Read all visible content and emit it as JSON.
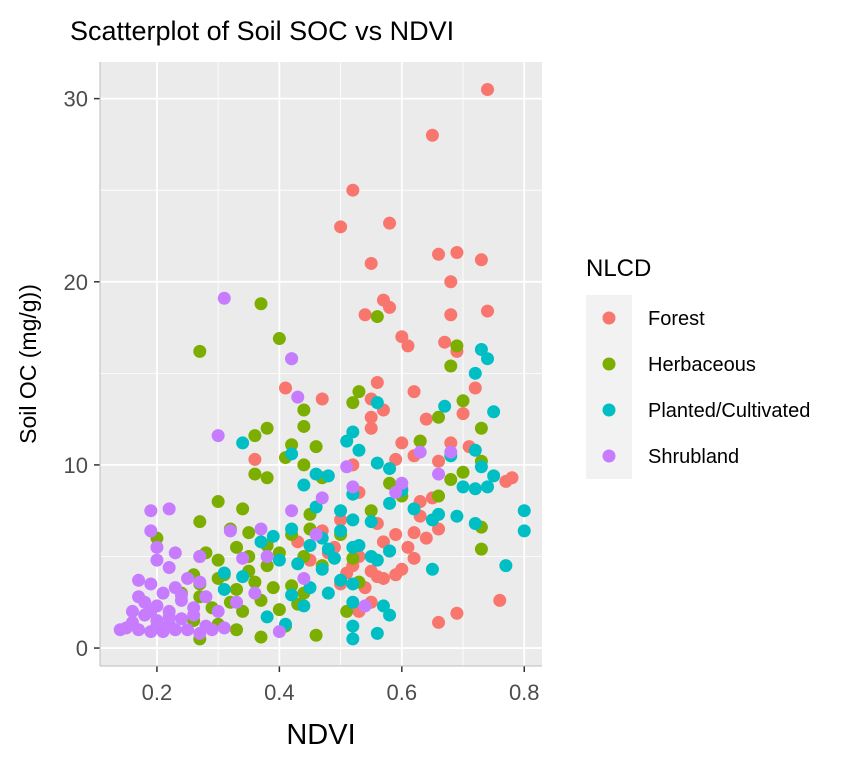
{
  "chart_data": {
    "type": "scatter",
    "title": "Scatterplot of Soil SOC vs NDVI",
    "xlabel": "NDVI",
    "ylabel": "Soil OC (mg/g))",
    "xlim": [
      0.107,
      0.829
    ],
    "ylim": [
      -0.98,
      32.0
    ],
    "xticks": [
      0.2,
      0.4,
      0.6,
      0.8
    ],
    "xtick_labels": [
      "0.2",
      "0.4",
      "0.6",
      "0.8"
    ],
    "yticks": [
      0,
      10,
      20,
      30
    ],
    "ytick_labels": [
      "0",
      "10",
      "20",
      "30"
    ],
    "grid": true,
    "legend": {
      "title": "NLCD",
      "placement": "right"
    },
    "series": [
      {
        "name": "Forest",
        "color": "#F8766D",
        "points": [
          [
            0.74,
            30.5
          ],
          [
            0.65,
            28
          ],
          [
            0.52,
            25
          ],
          [
            0.5,
            23
          ],
          [
            0.58,
            23.2
          ],
          [
            0.55,
            21
          ],
          [
            0.66,
            21.5
          ],
          [
            0.69,
            21.6
          ],
          [
            0.73,
            21.2
          ],
          [
            0.68,
            20
          ],
          [
            0.57,
            19
          ],
          [
            0.58,
            18.6
          ],
          [
            0.68,
            18.2
          ],
          [
            0.74,
            18.4
          ],
          [
            0.54,
            18.2
          ],
          [
            0.6,
            17
          ],
          [
            0.61,
            16.5
          ],
          [
            0.67,
            16.7
          ],
          [
            0.69,
            16.2
          ],
          [
            0.56,
            14.5
          ],
          [
            0.62,
            14
          ],
          [
            0.72,
            14.2
          ],
          [
            0.41,
            14.2
          ],
          [
            0.47,
            13.6
          ],
          [
            0.55,
            13.6
          ],
          [
            0.57,
            13
          ],
          [
            0.55,
            12.6
          ],
          [
            0.64,
            12.5
          ],
          [
            0.7,
            12.8
          ],
          [
            0.55,
            12
          ],
          [
            0.6,
            11.2
          ],
          [
            0.63,
            11.3
          ],
          [
            0.68,
            11.2
          ],
          [
            0.71,
            11
          ],
          [
            0.36,
            10.3
          ],
          [
            0.52,
            10
          ],
          [
            0.59,
            10.3
          ],
          [
            0.62,
            10.5
          ],
          [
            0.66,
            10.2
          ],
          [
            0.78,
            9.3
          ],
          [
            0.77,
            9.1
          ],
          [
            0.53,
            8.5
          ],
          [
            0.6,
            8.7
          ],
          [
            0.65,
            8.2
          ],
          [
            0.63,
            7.2
          ],
          [
            0.5,
            7.0
          ],
          [
            0.47,
            6.4
          ],
          [
            0.56,
            6.8
          ],
          [
            0.62,
            6.3
          ],
          [
            0.64,
            6.0
          ],
          [
            0.66,
            6.5
          ],
          [
            0.43,
            5.8
          ],
          [
            0.48,
            5.2
          ],
          [
            0.53,
            5.0
          ],
          [
            0.58,
            5.3
          ],
          [
            0.61,
            5.5
          ],
          [
            0.62,
            4.9
          ],
          [
            0.52,
            4.5
          ],
          [
            0.55,
            4.2
          ],
          [
            0.57,
            3.8
          ],
          [
            0.59,
            4.0
          ],
          [
            0.5,
            3.5
          ],
          [
            0.54,
            3.3
          ],
          [
            0.56,
            3.9
          ],
          [
            0.6,
            4.3
          ],
          [
            0.45,
            4.8
          ],
          [
            0.53,
            2.0
          ],
          [
            0.55,
            2.5
          ],
          [
            0.69,
            1.9
          ],
          [
            0.66,
            1.4
          ],
          [
            0.76,
            2.6
          ],
          [
            0.49,
            5.5
          ],
          [
            0.51,
            4.1
          ],
          [
            0.57,
            5.8
          ],
          [
            0.63,
            8.0
          ],
          [
            0.59,
            6.2
          ]
        ]
      },
      {
        "name": "Herbaceous",
        "color": "#7CAE00",
        "points": [
          [
            0.37,
            18.8
          ],
          [
            0.27,
            16.2
          ],
          [
            0.4,
            16.9
          ],
          [
            0.56,
            18.1
          ],
          [
            0.69,
            16.5
          ],
          [
            0.68,
            15.4
          ],
          [
            0.53,
            14
          ],
          [
            0.52,
            13.4
          ],
          [
            0.44,
            13
          ],
          [
            0.44,
            12.1
          ],
          [
            0.38,
            12
          ],
          [
            0.36,
            11.6
          ],
          [
            0.42,
            11.1
          ],
          [
            0.46,
            11
          ],
          [
            0.63,
            11.3
          ],
          [
            0.7,
            13.5
          ],
          [
            0.73,
            12
          ],
          [
            0.66,
            12.6
          ],
          [
            0.41,
            10.4
          ],
          [
            0.44,
            10
          ],
          [
            0.36,
            9.5
          ],
          [
            0.38,
            9.3
          ],
          [
            0.47,
            9.3
          ],
          [
            0.58,
            9.0
          ],
          [
            0.68,
            9.2
          ],
          [
            0.7,
            9.6
          ],
          [
            0.73,
            10.2
          ],
          [
            0.3,
            8
          ],
          [
            0.34,
            7.6
          ],
          [
            0.45,
            7.3
          ],
          [
            0.55,
            7.5
          ],
          [
            0.6,
            8.3
          ],
          [
            0.66,
            8.3
          ],
          [
            0.73,
            6.6
          ],
          [
            0.73,
            5.4
          ],
          [
            0.27,
            6.9
          ],
          [
            0.32,
            6.5
          ],
          [
            0.35,
            6.3
          ],
          [
            0.42,
            6.2
          ],
          [
            0.45,
            6.5
          ],
          [
            0.5,
            6.2
          ],
          [
            0.27,
            5.0
          ],
          [
            0.28,
            5.2
          ],
          [
            0.3,
            4.8
          ],
          [
            0.33,
            5.5
          ],
          [
            0.35,
            5.0
          ],
          [
            0.38,
            5.6
          ],
          [
            0.4,
            5.2
          ],
          [
            0.44,
            5.0
          ],
          [
            0.52,
            4.9
          ],
          [
            0.26,
            4.0
          ],
          [
            0.27,
            3.5
          ],
          [
            0.3,
            3.8
          ],
          [
            0.33,
            3.2
          ],
          [
            0.36,
            3.6
          ],
          [
            0.39,
            3.3
          ],
          [
            0.42,
            3.4
          ],
          [
            0.44,
            3.0
          ],
          [
            0.27,
            2.8
          ],
          [
            0.29,
            2.2
          ],
          [
            0.32,
            2.5
          ],
          [
            0.34,
            2.0
          ],
          [
            0.37,
            2.6
          ],
          [
            0.4,
            2.1
          ],
          [
            0.43,
            2.4
          ],
          [
            0.26,
            1.5
          ],
          [
            0.3,
            1.3
          ],
          [
            0.33,
            1.0
          ],
          [
            0.37,
            0.6
          ],
          [
            0.27,
            0.5
          ],
          [
            0.41,
            1.2
          ],
          [
            0.46,
            0.7
          ],
          [
            0.51,
            2.0
          ],
          [
            0.2,
            6
          ],
          [
            0.35,
            4.2
          ],
          [
            0.31,
            4.0
          ],
          [
            0.47,
            4.5
          ],
          [
            0.53,
            3.6
          ],
          [
            0.24,
            3.0
          ],
          [
            0.38,
            4.5
          ]
        ]
      },
      {
        "name": "Planted/Cultivated",
        "color": "#00BFC4",
        "points": [
          [
            0.73,
            16.3
          ],
          [
            0.74,
            15.8
          ],
          [
            0.42,
            15.8
          ],
          [
            0.72,
            15
          ],
          [
            0.56,
            13.4
          ],
          [
            0.67,
            13.2
          ],
          [
            0.75,
            12.9
          ],
          [
            0.52,
            11.8
          ],
          [
            0.51,
            11.3
          ],
          [
            0.34,
            11.2
          ],
          [
            0.42,
            10.6
          ],
          [
            0.53,
            10.8
          ],
          [
            0.56,
            10.1
          ],
          [
            0.68,
            10.5
          ],
          [
            0.72,
            10.8
          ],
          [
            0.46,
            9.5
          ],
          [
            0.48,
            9.4
          ],
          [
            0.58,
            9.8
          ],
          [
            0.73,
            9.9
          ],
          [
            0.44,
            8.9
          ],
          [
            0.52,
            8.4
          ],
          [
            0.6,
            8.6
          ],
          [
            0.7,
            8.8
          ],
          [
            0.72,
            8.7
          ],
          [
            0.75,
            9.4
          ],
          [
            0.74,
            8.8
          ],
          [
            0.8,
            7.5
          ],
          [
            0.8,
            6.4
          ],
          [
            0.77,
            4.5
          ],
          [
            0.58,
            7.9
          ],
          [
            0.66,
            7.3
          ],
          [
            0.69,
            7.2
          ],
          [
            0.72,
            6.8
          ],
          [
            0.65,
            7.0
          ],
          [
            0.46,
            7.7
          ],
          [
            0.5,
            7.5
          ],
          [
            0.52,
            7.0
          ],
          [
            0.55,
            6.9
          ],
          [
            0.39,
            6.1
          ],
          [
            0.42,
            6.5
          ],
          [
            0.47,
            6.0
          ],
          [
            0.5,
            6.4
          ],
          [
            0.53,
            5.6
          ],
          [
            0.45,
            5.6
          ],
          [
            0.48,
            5.4
          ],
          [
            0.52,
            5.5
          ],
          [
            0.55,
            5.0
          ],
          [
            0.58,
            5.3
          ],
          [
            0.65,
            4.3
          ],
          [
            0.37,
            5.8
          ],
          [
            0.4,
            4.8
          ],
          [
            0.43,
            4.6
          ],
          [
            0.47,
            4.3
          ],
          [
            0.5,
            3.7
          ],
          [
            0.52,
            3.5
          ],
          [
            0.31,
            4.1
          ],
          [
            0.34,
            3.9
          ],
          [
            0.42,
            2.9
          ],
          [
            0.45,
            3.3
          ],
          [
            0.48,
            3.0
          ],
          [
            0.44,
            2.3
          ],
          [
            0.52,
            2.5
          ],
          [
            0.57,
            2.3
          ],
          [
            0.38,
            1.7
          ],
          [
            0.41,
            1.3
          ],
          [
            0.52,
            1.2
          ],
          [
            0.52,
            0.5
          ],
          [
            0.56,
            0.8
          ],
          [
            0.58,
            1.8
          ],
          [
            0.31,
            3.2
          ],
          [
            0.62,
            7.6
          ],
          [
            0.56,
            4.8
          ],
          [
            0.49,
            4.9
          ]
        ]
      },
      {
        "name": "Shrubland",
        "color": "#C77CFF",
        "points": [
          [
            0.31,
            19.1
          ],
          [
            0.3,
            11.6
          ],
          [
            0.43,
            13.7
          ],
          [
            0.42,
            15.8
          ],
          [
            0.51,
            9.9
          ],
          [
            0.52,
            8.8
          ],
          [
            0.6,
            9.0
          ],
          [
            0.59,
            8.5
          ],
          [
            0.66,
            9.5
          ],
          [
            0.68,
            10.7
          ],
          [
            0.47,
            8.2
          ],
          [
            0.19,
            7.5
          ],
          [
            0.22,
            7.6
          ],
          [
            0.19,
            6.4
          ],
          [
            0.2,
            5.5
          ],
          [
            0.23,
            5.2
          ],
          [
            0.27,
            5.0
          ],
          [
            0.2,
            4.8
          ],
          [
            0.22,
            4.4
          ],
          [
            0.17,
            3.7
          ],
          [
            0.19,
            3.5
          ],
          [
            0.21,
            3.0
          ],
          [
            0.23,
            3.3
          ],
          [
            0.25,
            3.8
          ],
          [
            0.17,
            2.8
          ],
          [
            0.18,
            2.5
          ],
          [
            0.2,
            2.3
          ],
          [
            0.22,
            2.0
          ],
          [
            0.24,
            2.6
          ],
          [
            0.26,
            2.2
          ],
          [
            0.16,
            2.0
          ],
          [
            0.18,
            1.8
          ],
          [
            0.2,
            1.5
          ],
          [
            0.22,
            1.3
          ],
          [
            0.24,
            1.6
          ],
          [
            0.26,
            1.8
          ],
          [
            0.28,
            1.2
          ],
          [
            0.15,
            1.1
          ],
          [
            0.14,
            1.0
          ],
          [
            0.17,
            1.0
          ],
          [
            0.19,
            0.9
          ],
          [
            0.21,
            0.9
          ],
          [
            0.23,
            1.0
          ],
          [
            0.25,
            1.0
          ],
          [
            0.27,
            0.8
          ],
          [
            0.29,
            1.0
          ],
          [
            0.31,
            1.1
          ],
          [
            0.33,
            2.5
          ],
          [
            0.28,
            2.8
          ],
          [
            0.3,
            2.0
          ],
          [
            0.36,
            3.0
          ],
          [
            0.4,
            0.9
          ],
          [
            0.34,
            4.9
          ],
          [
            0.37,
            6.5
          ],
          [
            0.42,
            7.5
          ],
          [
            0.38,
            5.0
          ],
          [
            0.22,
            1.7
          ],
          [
            0.19,
            2.0
          ],
          [
            0.2,
            1.2
          ],
          [
            0.24,
            2.9
          ],
          [
            0.16,
            1.4
          ],
          [
            0.27,
            3.6
          ],
          [
            0.32,
            6.4
          ],
          [
            0.44,
            3.8
          ],
          [
            0.46,
            6.2
          ],
          [
            0.54,
            2.3
          ],
          [
            0.63,
            10.7
          ]
        ]
      }
    ]
  }
}
